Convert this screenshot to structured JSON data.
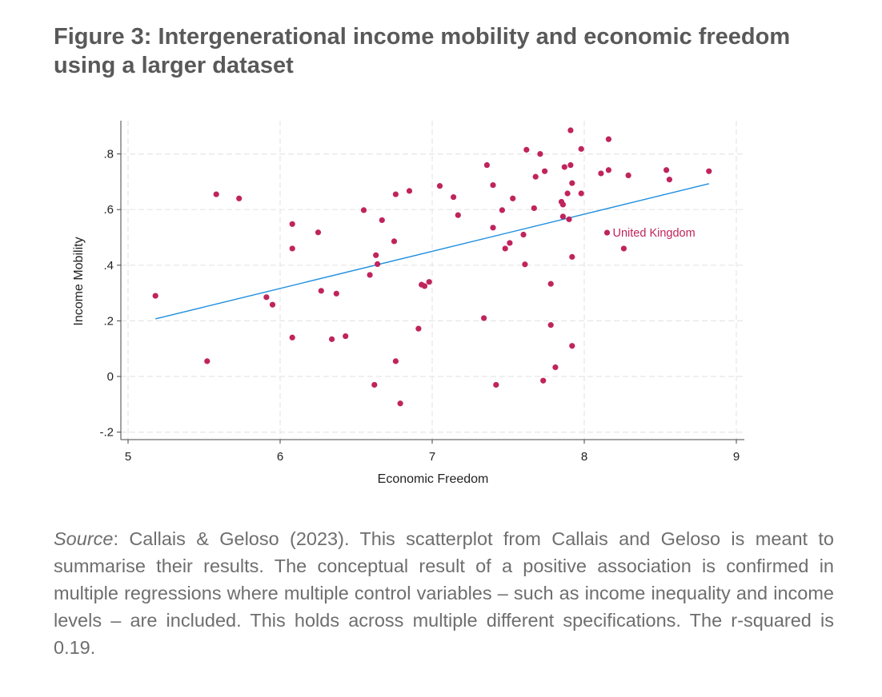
{
  "figure": {
    "title": "Figure 3: Intergenerational income mobility and economic freedom using a larger dataset",
    "source_label": "Source",
    "source_text": ": Callais & Geloso (2023). This scatterplot from Callais and Geloso is meant to summarise their results. The conceptual result of a positive association is confirmed in multiple regressions where multiple control variables – such as income inequality and income levels – are included. This holds across multiple different specifications. The r-squared is 0.19."
  },
  "chart_data": {
    "type": "scatter",
    "title": "",
    "xlabel": "Economic Freedom",
    "ylabel": "Income Mobility",
    "xlim": [
      5,
      9
    ],
    "ylim": [
      -0.22,
      0.92
    ],
    "x_ticks": [
      5,
      6,
      7,
      8,
      9
    ],
    "x_tick_labels": [
      "5",
      "6",
      "7",
      "8",
      "9"
    ],
    "y_ticks": [
      -0.2,
      0,
      0.2,
      0.4,
      0.6,
      0.8
    ],
    "y_tick_labels": [
      "-.2",
      "0",
      ".2",
      ".4",
      ".6",
      ".8"
    ],
    "grid": true,
    "point_color": "#c0245c",
    "fit_color": "#1f8fe0",
    "fit_line": {
      "x": [
        5.18,
        8.82
      ],
      "y": [
        0.207,
        0.693
      ]
    },
    "annotation": {
      "x": 8.15,
      "y": 0.517,
      "text": "United Kingdom"
    },
    "points": [
      {
        "x": 5.18,
        "y": 0.29
      },
      {
        "x": 5.52,
        "y": 0.055
      },
      {
        "x": 5.58,
        "y": 0.655
      },
      {
        "x": 5.73,
        "y": 0.64
      },
      {
        "x": 5.91,
        "y": 0.285
      },
      {
        "x": 5.95,
        "y": 0.258
      },
      {
        "x": 6.08,
        "y": 0.548
      },
      {
        "x": 6.08,
        "y": 0.46
      },
      {
        "x": 6.08,
        "y": 0.14
      },
      {
        "x": 6.25,
        "y": 0.518
      },
      {
        "x": 6.27,
        "y": 0.308
      },
      {
        "x": 6.34,
        "y": 0.134
      },
      {
        "x": 6.37,
        "y": 0.298
      },
      {
        "x": 6.43,
        "y": 0.145
      },
      {
        "x": 6.55,
        "y": 0.598
      },
      {
        "x": 6.59,
        "y": 0.365
      },
      {
        "x": 6.62,
        "y": -0.03
      },
      {
        "x": 6.63,
        "y": 0.436
      },
      {
        "x": 6.64,
        "y": 0.404
      },
      {
        "x": 6.67,
        "y": 0.562
      },
      {
        "x": 6.75,
        "y": 0.486
      },
      {
        "x": 6.76,
        "y": 0.655
      },
      {
        "x": 6.76,
        "y": 0.055
      },
      {
        "x": 6.79,
        "y": -0.097
      },
      {
        "x": 6.85,
        "y": 0.667
      },
      {
        "x": 6.91,
        "y": 0.172
      },
      {
        "x": 6.93,
        "y": 0.33
      },
      {
        "x": 6.95,
        "y": 0.325
      },
      {
        "x": 6.98,
        "y": 0.34
      },
      {
        "x": 7.05,
        "y": 0.685
      },
      {
        "x": 7.14,
        "y": 0.645
      },
      {
        "x": 7.17,
        "y": 0.58
      },
      {
        "x": 7.34,
        "y": 0.21
      },
      {
        "x": 7.36,
        "y": 0.76
      },
      {
        "x": 7.4,
        "y": 0.535
      },
      {
        "x": 7.4,
        "y": 0.688
      },
      {
        "x": 7.42,
        "y": -0.03
      },
      {
        "x": 7.46,
        "y": 0.598
      },
      {
        "x": 7.48,
        "y": 0.46
      },
      {
        "x": 7.51,
        "y": 0.48
      },
      {
        "x": 7.53,
        "y": 0.64
      },
      {
        "x": 7.6,
        "y": 0.51
      },
      {
        "x": 7.61,
        "y": 0.403
      },
      {
        "x": 7.62,
        "y": 0.815
      },
      {
        "x": 7.67,
        "y": 0.605
      },
      {
        "x": 7.68,
        "y": 0.718
      },
      {
        "x": 7.71,
        "y": 0.8
      },
      {
        "x": 7.73,
        "y": -0.015
      },
      {
        "x": 7.74,
        "y": 0.738
      },
      {
        "x": 7.78,
        "y": 0.333
      },
      {
        "x": 7.78,
        "y": 0.185
      },
      {
        "x": 7.81,
        "y": 0.033
      },
      {
        "x": 7.85,
        "y": 0.628
      },
      {
        "x": 7.86,
        "y": 0.618
      },
      {
        "x": 7.86,
        "y": 0.575
      },
      {
        "x": 7.87,
        "y": 0.753
      },
      {
        "x": 7.89,
        "y": 0.658
      },
      {
        "x": 7.9,
        "y": 0.565
      },
      {
        "x": 7.91,
        "y": 0.885
      },
      {
        "x": 7.91,
        "y": 0.76
      },
      {
        "x": 7.92,
        "y": 0.695
      },
      {
        "x": 7.92,
        "y": 0.43
      },
      {
        "x": 7.92,
        "y": 0.11
      },
      {
        "x": 7.98,
        "y": 0.818
      },
      {
        "x": 7.98,
        "y": 0.658
      },
      {
        "x": 8.11,
        "y": 0.73
      },
      {
        "x": 8.16,
        "y": 0.742
      },
      {
        "x": 8.16,
        "y": 0.853
      },
      {
        "x": 8.15,
        "y": 0.517
      },
      {
        "x": 8.26,
        "y": 0.46
      },
      {
        "x": 8.29,
        "y": 0.723
      },
      {
        "x": 8.54,
        "y": 0.742
      },
      {
        "x": 8.56,
        "y": 0.708
      },
      {
        "x": 8.82,
        "y": 0.738
      }
    ]
  }
}
